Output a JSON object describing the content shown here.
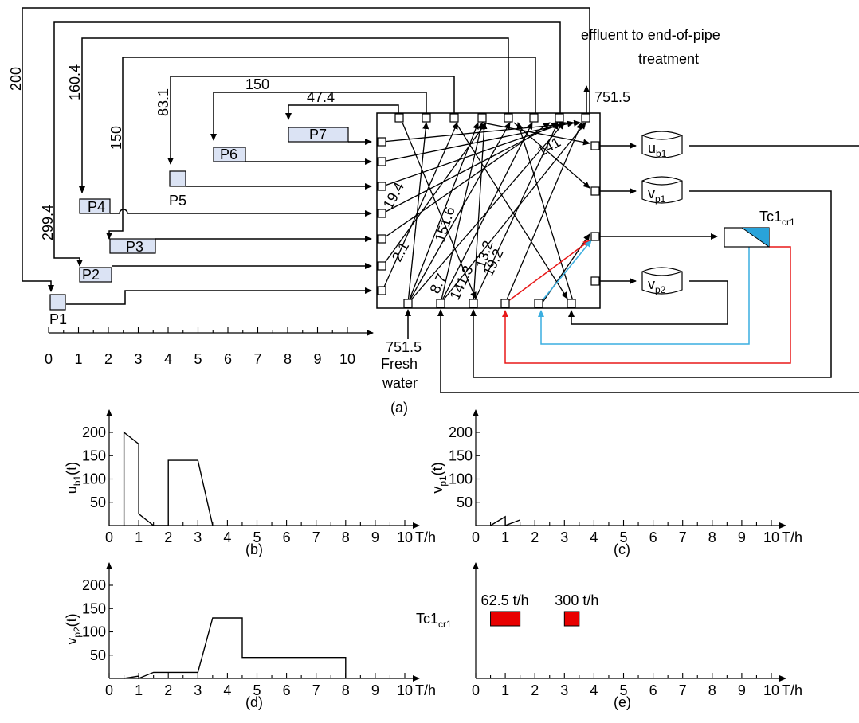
{
  "network": {
    "effluent_line1": "effluent to end-of-pipe",
    "effluent_line2": "treatment",
    "effluent_flow": "751.5",
    "freshwater_flow": "751.5",
    "freshwater_line1": "Fresh",
    "freshwater_line2": "water",
    "panel_label": "(a)",
    "processes": [
      "P1",
      "P2",
      "P3",
      "P4",
      "P5",
      "P6",
      "P7"
    ],
    "recycle_flows": [
      "200",
      "160.4",
      "150",
      "299.4",
      "83.1",
      "150",
      "47.4"
    ],
    "stream_labels": [
      "141",
      "19.4",
      "151.6",
      "2.1",
      "13.2",
      "8.7",
      "141.3",
      "19.2"
    ],
    "time_axis_ticks": [
      "0",
      "1",
      "2",
      "3",
      "4",
      "5",
      "6",
      "7",
      "8",
      "9",
      "10"
    ],
    "units": {
      "ub1": {
        "main": "u",
        "sub": "b1"
      },
      "vp1": {
        "main": "v",
        "sub": "p1"
      },
      "vp2": {
        "main": "v",
        "sub": "p2"
      },
      "tc": {
        "main": "Tc1",
        "sub": "cr1"
      }
    },
    "colors": {
      "red_stream": "#e81818",
      "blue_stream": "#3aaee0",
      "process_fill": "#dbe3f4",
      "membrane_blue": "#29a3da"
    }
  },
  "chart_data": [
    {
      "id": "b",
      "type": "line",
      "panel_label": "(b)",
      "ylabel_main": "u",
      "ylabel_sub": "b1",
      "ylabel_suffix": "(t)",
      "xlabel": "T/h",
      "xlim": [
        0,
        10
      ],
      "ylim": [
        0,
        200
      ],
      "yticks": [
        50,
        100,
        150,
        200
      ],
      "xticks": [
        "0",
        "1",
        "2",
        "3",
        "4",
        "5",
        "6",
        "7",
        "8",
        "9",
        "10"
      ],
      "x": [
        0.5,
        0.5,
        1.0,
        1.0,
        1.5,
        2.0,
        2.0,
        3.0,
        3.5
      ],
      "y": [
        0,
        200,
        175,
        25,
        0,
        0,
        140,
        140,
        0
      ]
    },
    {
      "id": "c",
      "type": "line",
      "panel_label": "(c)",
      "ylabel_main": "v",
      "ylabel_sub": "p1",
      "ylabel_suffix": "(t)",
      "xlabel": "T/h",
      "xlim": [
        0,
        10
      ],
      "ylim": [
        0,
        200
      ],
      "yticks": [
        50,
        100,
        150,
        200
      ],
      "xticks": [
        "0",
        "1",
        "2",
        "3",
        "4",
        "5",
        "6",
        "7",
        "8",
        "9",
        "10"
      ],
      "x": [
        0.5,
        1.0,
        1.0,
        1.5
      ],
      "y": [
        0,
        19,
        0,
        12
      ]
    },
    {
      "id": "d",
      "type": "line",
      "panel_label": "(d)",
      "ylabel_main": "v",
      "ylabel_sub": "p2",
      "ylabel_suffix": "(t)",
      "xlabel": "T/h",
      "xlim": [
        0,
        10
      ],
      "ylim": [
        0,
        200
      ],
      "yticks": [
        50,
        100,
        150,
        200
      ],
      "xticks": [
        "0",
        "1",
        "2",
        "3",
        "4",
        "5",
        "6",
        "7",
        "8",
        "9",
        "10"
      ],
      "x": [
        0.5,
        1.0,
        1.0,
        1.5,
        3.0,
        3.5,
        4.5,
        4.5,
        8.0,
        8.0
      ],
      "y": [
        0,
        5,
        0,
        13,
        13,
        130,
        130,
        45,
        45,
        0
      ]
    },
    {
      "id": "e",
      "type": "gantt",
      "panel_label": "(e)",
      "row_main": "Tc1",
      "row_sub": "cr1",
      "xlabel": "T/h",
      "xlim": [
        0,
        10
      ],
      "xticks": [
        "0",
        "1",
        "2",
        "3",
        "4",
        "5",
        "6",
        "7",
        "8",
        "9",
        "10"
      ],
      "bars": [
        {
          "start": 0.5,
          "end": 1.5,
          "label": "62.5 t/h"
        },
        {
          "start": 3.0,
          "end": 3.5,
          "label": "300 t/h"
        }
      ],
      "bar_color": "#e80000"
    }
  ]
}
